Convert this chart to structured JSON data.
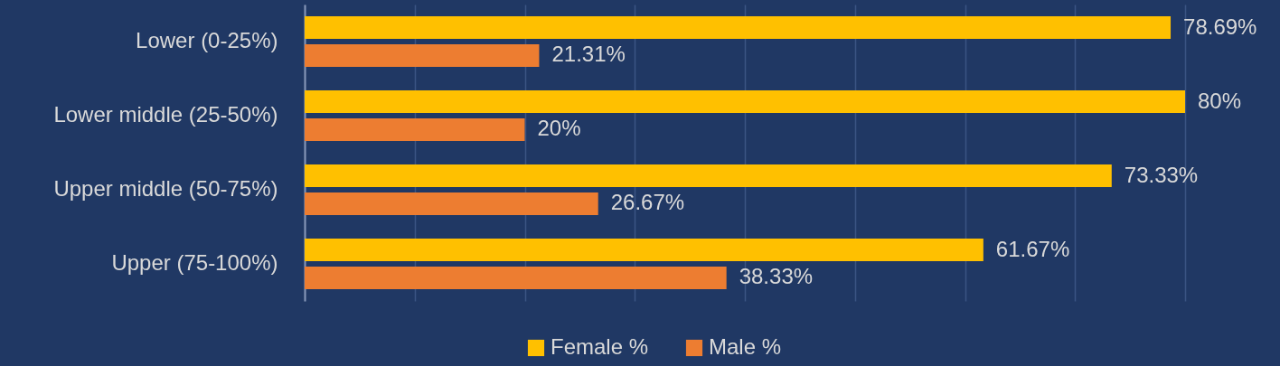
{
  "chart_data": {
    "type": "bar",
    "orientation": "horizontal",
    "categories": [
      "Lower (0-25%)",
      "Lower middle (25-50%)",
      "Upper middle (50-75%)",
      "Upper (75-100%)"
    ],
    "series": [
      {
        "name": "Female %",
        "color": "#ffc000",
        "values": [
          78.69,
          80,
          73.33,
          61.67
        ],
        "value_labels": [
          "78.69%",
          "80%",
          "73.33%",
          "61.67%"
        ]
      },
      {
        "name": "Male %",
        "color": "#ed7d31",
        "values": [
          21.31,
          20,
          26.67,
          38.33
        ],
        "value_labels": [
          "21.31%",
          "20%",
          "26.67%",
          "38.33%"
        ]
      }
    ],
    "xlim": [
      0,
      80
    ],
    "xticks": [
      {
        "value": 0,
        "label": null
      },
      {
        "value": 10,
        "label": null
      },
      {
        "value": 20,
        "label": null
      },
      {
        "value": 30,
        "label": null
      },
      {
        "value": 40,
        "label": null
      },
      {
        "value": 50,
        "label": null
      },
      {
        "value": 60,
        "label": null
      },
      {
        "value": 70,
        "label": null
      },
      {
        "value": 80,
        "label": null
      }
    ],
    "grid": "x",
    "legend": "bottom",
    "tick_labels": "y"
  }
}
